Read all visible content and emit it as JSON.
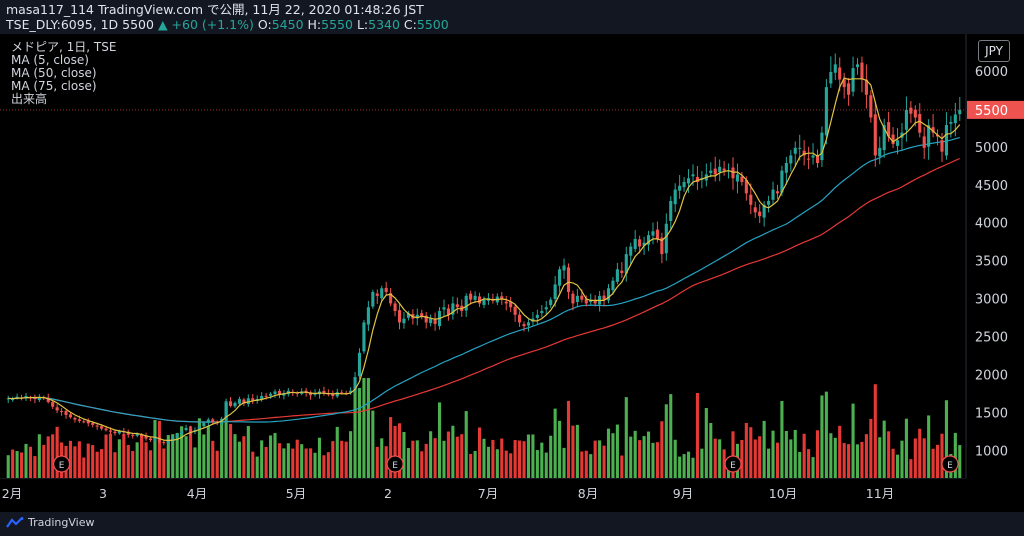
{
  "header": {
    "line1": "masa117_114 TradingView.com で公開, 11月 22, 2020 01:48:26 JST",
    "symbol": "TSE_DLY:6095, 1D 5500",
    "change": "▲ +60 (+1.1%)",
    "o_label": "O:",
    "o": "5450",
    "h_label": "H:",
    "h": "5550",
    "l_label": "L:",
    "l": "5340",
    "c_label": "C:",
    "c": "5500"
  },
  "legend": {
    "title": "メドピア, 1日, TSE",
    "ma5": "MA (5, close)",
    "ma50": "MA (50, close)",
    "ma75": "MA (75, close)",
    "volume": "出来高"
  },
  "currency": "JPY",
  "footer": {
    "brand": "TradingView"
  },
  "colors": {
    "up": "#26a69a",
    "down": "#ef5350",
    "ma5": "#e0c341",
    "ma50": "#26a3c4",
    "ma75": "#e53935",
    "vol_up": "#4caf50",
    "vol_down": "#e53935",
    "price_line": "#ef5350",
    "background": "#000000"
  },
  "chart_data": {
    "type": "candlestick",
    "y_ticks": [
      1000,
      1500,
      2000,
      2500,
      3000,
      3500,
      4000,
      4500,
      5000,
      5500,
      6000
    ],
    "ylim": [
      650,
      6500
    ],
    "current_price": 5500,
    "x_labels": [
      "2月",
      "3",
      "4月",
      "5月",
      "2",
      "7月",
      "8月",
      "9月",
      "10月",
      "11月"
    ],
    "earnings_markers": [
      "E",
      "E",
      "E",
      "E"
    ],
    "close": [
      1700,
      1690,
      1720,
      1700,
      1730,
      1710,
      1690,
      1720,
      1700,
      1650,
      1590,
      1540,
      1520,
      1480,
      1450,
      1420,
      1400,
      1390,
      1370,
      1350,
      1330,
      1300,
      1280,
      1260,
      1240,
      1270,
      1250,
      1220,
      1210,
      1230,
      1200,
      1170,
      1150,
      1190,
      1130,
      1110,
      1140,
      1180,
      1230,
      1270,
      1310,
      1250,
      1280,
      1330,
      1380,
      1420,
      1390,
      1370,
      1430,
      1660,
      1600,
      1640,
      1690,
      1630,
      1700,
      1670,
      1690,
      1730,
      1720,
      1760,
      1790,
      1750,
      1770,
      1800,
      1780,
      1760,
      1790,
      1770,
      1740,
      1760,
      1790,
      1770,
      1750,
      1730,
      1780,
      1770,
      1760,
      1800,
      1980,
      2300,
      2700,
      2900,
      3100,
      3050,
      3150,
      3100,
      2950,
      2850,
      2700,
      2750,
      2820,
      2750,
      2800,
      2780,
      2700,
      2750,
      2680,
      2850,
      2900,
      2800,
      2950,
      2900,
      2850,
      3050,
      3000,
      3050,
      2950,
      3000,
      3020,
      2990,
      3040,
      3000,
      2950,
      2900,
      2800,
      2700,
      2650,
      2700,
      2750,
      2800,
      2850,
      2900,
      3000,
      3200,
      3400,
      3450,
      3100,
      2950,
      3050,
      3000,
      2950,
      3000,
      2950,
      3050,
      3000,
      3150,
      3250,
      3400,
      3350,
      3600,
      3700,
      3800,
      3700,
      3750,
      3850,
      3900,
      3800,
      3600,
      4000,
      4300,
      4450,
      4500,
      4550,
      4600,
      4650,
      4550,
      4600,
      4650,
      4700,
      4650,
      4750,
      4700,
      4700,
      4600,
      4650,
      4550,
      4400,
      4250,
      4150,
      4100,
      4250,
      4300,
      4450,
      4400,
      4700,
      4800,
      4900,
      5000,
      5000,
      4900,
      4850,
      4900,
      4800,
      5200,
      5800,
      6000,
      6100,
      5900,
      5800,
      5700,
      6050,
      6100,
      5900,
      5700,
      5400,
      4900,
      5000,
      5300,
      5150,
      5050,
      5100,
      5200,
      5500,
      5450,
      5400,
      5200,
      5000,
      5300,
      5200,
      5150,
      4950,
      5300,
      5340,
      5440,
      5500
    ]
  }
}
